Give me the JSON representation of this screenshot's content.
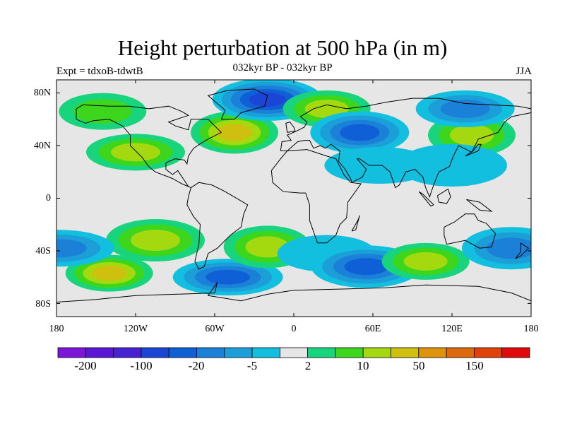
{
  "plot": {
    "title": "Height perturbation at 500 hPa (in m)",
    "left_string": "Expt = tdxoB-tdwtB",
    "center_string": "032kyr BP - 032kyr BP",
    "right_string": "JJA"
  },
  "axes": {
    "lat_labels": [
      "80N",
      "40N",
      "0",
      "40S",
      "80S"
    ],
    "lon_labels": [
      "180",
      "120W",
      "60W",
      "0",
      "60E",
      "120E",
      "180"
    ]
  },
  "colorbar": {
    "labels": [
      "-200",
      "-100",
      "-20",
      "-5",
      "2",
      "10",
      "50",
      "150"
    ],
    "colors": [
      "#7d15d9",
      "#5a15d5",
      "#4622d2",
      "#1b45d4",
      "#0f5fd7",
      "#1b80d8",
      "#1c9fd9",
      "#13bfde",
      "#e6e6e6",
      "#18d47c",
      "#3dd61c",
      "#a4d910",
      "#cfc00f",
      "#dd930b",
      "#dd6a0a",
      "#e0400a",
      "#e00a0a"
    ]
  },
  "map_data": {
    "type": "filled-contour",
    "projection": "cylindrical-equidistant",
    "lon_range": [
      -180,
      180
    ],
    "lat_range": [
      -90,
      90
    ],
    "anomalies": [
      {
        "lon": -145,
        "lat": 66,
        "level": 10
      },
      {
        "lon": -115,
        "lat": 57,
        "level": 8
      },
      {
        "lon": -60,
        "lat": 65,
        "level": 8
      },
      {
        "lon": -45,
        "lat": 50,
        "level": 12
      },
      {
        "lon": -120,
        "lat": 35,
        "level": 11
      },
      {
        "lon": -20,
        "lat": 75,
        "level": 3
      },
      {
        "lon": 25,
        "lat": 68,
        "level": 11
      },
      {
        "lon": 50,
        "lat": 50,
        "level": 4
      },
      {
        "lon": 65,
        "lat": 25,
        "level": 7
      },
      {
        "lon": 135,
        "lat": 48,
        "level": 11
      },
      {
        "lon": 130,
        "lat": 68,
        "level": 5
      },
      {
        "lon": 120,
        "lat": 25,
        "level": 7
      },
      {
        "lon": -140,
        "lat": -57,
        "level": 12
      },
      {
        "lon": -105,
        "lat": -32,
        "level": 11
      },
      {
        "lon": -50,
        "lat": -60,
        "level": 4
      },
      {
        "lon": -20,
        "lat": -37,
        "level": 11
      },
      {
        "lon": 25,
        "lat": -42,
        "level": 7
      },
      {
        "lon": 55,
        "lat": -52,
        "level": 4
      },
      {
        "lon": 100,
        "lat": -48,
        "level": 11
      },
      {
        "lon": 165,
        "lat": -38,
        "level": 5
      },
      {
        "lon": -178,
        "lat": -38,
        "level": 5
      }
    ]
  }
}
